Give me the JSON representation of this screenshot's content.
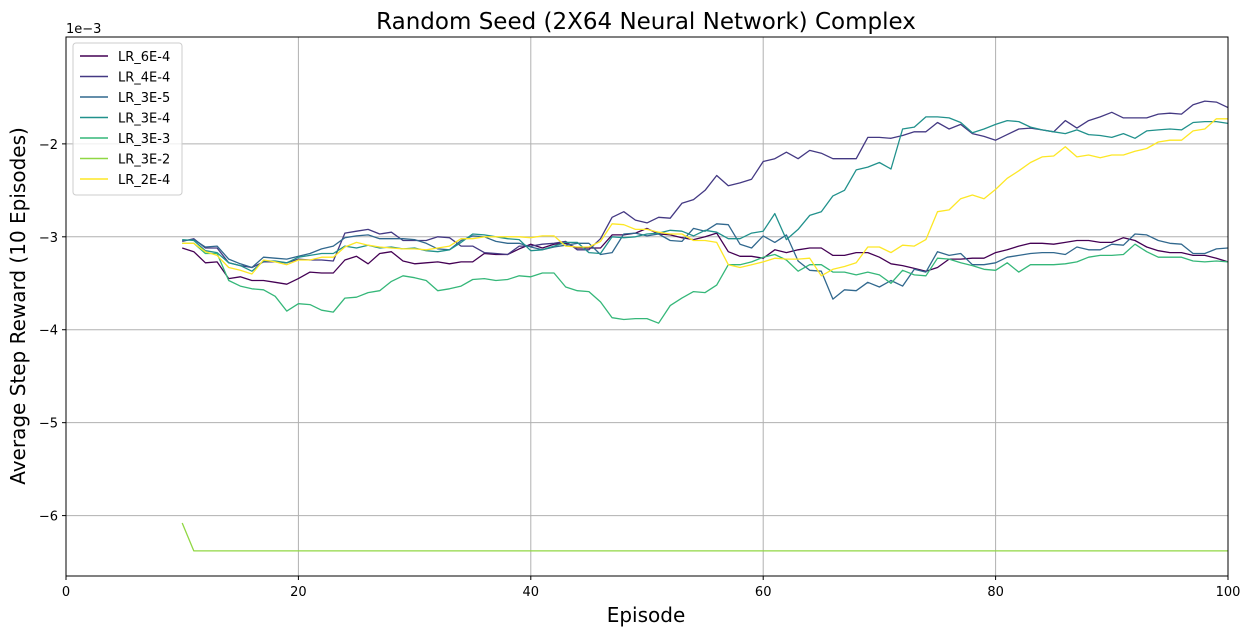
{
  "chart_data": {
    "type": "line",
    "title": "Random Seed (2X64 Neural Network) Complex",
    "xlabel": "Episode",
    "ylabel": "Average Step Reward (10 Episodes)",
    "y_offset_label": "1e−3",
    "xlim": [
      0,
      100
    ],
    "ylim": [
      -6.65,
      -0.85
    ],
    "x_ticks": [
      0,
      20,
      40,
      60,
      80,
      100
    ],
    "y_ticks": [
      -2,
      -3,
      -4,
      -5,
      -6
    ],
    "y_tick_labels": [
      "−2",
      "−3",
      "−4",
      "−5",
      "−6"
    ],
    "grid": true,
    "legend_position": "top-left",
    "series": [
      {
        "name": "LR_6E-4",
        "color": "#440154",
        "x_start": 10,
        "values": [
          -3.12,
          -3.16,
          -3.28,
          -3.27,
          -3.45,
          -3.43,
          -3.47,
          -3.47,
          -3.49,
          -3.51,
          -3.45,
          -3.38,
          -3.39,
          -3.39,
          -3.25,
          -3.21,
          -3.29,
          -3.18,
          -3.16,
          -3.26,
          -3.29,
          -3.28,
          -3.27,
          -3.29,
          -3.27,
          -3.27,
          -3.18,
          -3.19,
          -3.19,
          -3.13,
          -3.08,
          -3.12,
          -3.08,
          -3.07,
          -3.12,
          -3.12,
          -3.12,
          -2.98,
          -2.98,
          -2.96,
          -2.91,
          -2.97,
          -2.98,
          -3.01,
          -3.03,
          -3.0,
          -2.96,
          -3.16,
          -3.21,
          -3.21,
          -3.23,
          -3.14,
          -3.17,
          -3.14,
          -3.12,
          -3.12,
          -3.2,
          -3.2,
          -3.17,
          -3.17,
          -3.22,
          -3.29,
          -3.31,
          -3.34,
          -3.37,
          -3.33,
          -3.24,
          -3.24,
          -3.23,
          -3.23,
          -3.17,
          -3.14,
          -3.1,
          -3.07,
          -3.07,
          -3.08,
          -3.06,
          -3.04,
          -3.04,
          -3.06,
          -3.06,
          -3.01,
          -3.04,
          -3.11,
          -3.15,
          -3.17,
          -3.17,
          -3.2,
          -3.2,
          -3.23,
          -3.27
        ]
      },
      {
        "name": "LR_4E-4",
        "color": "#443983",
        "x_start": 10,
        "values": [
          -3.05,
          -3.02,
          -3.12,
          -3.12,
          -3.28,
          -3.31,
          -3.33,
          -3.27,
          -3.27,
          -3.28,
          -3.24,
          -3.25,
          -3.25,
          -3.26,
          -2.96,
          -2.94,
          -2.92,
          -2.97,
          -2.95,
          -3.04,
          -3.04,
          -3.04,
          -3.0,
          -3.01,
          -3.1,
          -3.1,
          -3.17,
          -3.18,
          -3.19,
          -3.1,
          -3.1,
          -3.08,
          -3.07,
          -3.05,
          -3.14,
          -3.14,
          -3.02,
          -2.79,
          -2.73,
          -2.82,
          -2.85,
          -2.79,
          -2.8,
          -2.64,
          -2.6,
          -2.5,
          -2.34,
          -2.45,
          -2.42,
          -2.38,
          -2.19,
          -2.16,
          -2.09,
          -2.16,
          -2.07,
          -2.1,
          -2.16,
          -2.16,
          -2.16,
          -1.93,
          -1.93,
          -1.94,
          -1.91,
          -1.87,
          -1.87,
          -1.77,
          -1.84,
          -1.79,
          -1.89,
          -1.92,
          -1.96,
          -1.9,
          -1.84,
          -1.83,
          -1.85,
          -1.87,
          -1.75,
          -1.83,
          -1.75,
          -1.71,
          -1.66,
          -1.72,
          -1.72,
          -1.72,
          -1.68,
          -1.67,
          -1.68,
          -1.58,
          -1.54,
          -1.55,
          -1.61
        ]
      },
      {
        "name": "LR_3E-5",
        "color": "#31688e",
        "x_start": 10,
        "values": [
          -3.04,
          -3.03,
          -3.11,
          -3.1,
          -3.24,
          -3.29,
          -3.33,
          -3.22,
          -3.23,
          -3.24,
          -3.21,
          -3.18,
          -3.13,
          -3.1,
          -3.01,
          -2.99,
          -2.98,
          -3.02,
          -3.02,
          -3.02,
          -3.03,
          -3.07,
          -3.13,
          -3.14,
          -3.04,
          -2.99,
          -3.0,
          -3.05,
          -3.07,
          -3.07,
          -3.11,
          -3.14,
          -3.11,
          -3.09,
          -3.07,
          -3.07,
          -3.19,
          -3.17,
          -2.97,
          -2.96,
          -2.99,
          -2.97,
          -3.04,
          -3.05,
          -2.91,
          -2.94,
          -2.86,
          -2.87,
          -3.08,
          -3.12,
          -2.99,
          -3.06,
          -2.98,
          -3.26,
          -3.36,
          -3.37,
          -3.67,
          -3.57,
          -3.58,
          -3.49,
          -3.54,
          -3.47,
          -3.53,
          -3.35,
          -3.38,
          -3.16,
          -3.2,
          -3.18,
          -3.3,
          -3.3,
          -3.28,
          -3.22,
          -3.2,
          -3.18,
          -3.17,
          -3.17,
          -3.19,
          -3.11,
          -3.14,
          -3.14,
          -3.08,
          -3.09,
          -2.97,
          -2.98,
          -3.04,
          -3.07,
          -3.08,
          -3.18,
          -3.18,
          -3.13,
          -3.12
        ]
      },
      {
        "name": "LR_3E-4",
        "color": "#21918c",
        "x_start": 10,
        "values": [
          -3.03,
          -3.04,
          -3.15,
          -3.17,
          -3.28,
          -3.31,
          -3.37,
          -3.26,
          -3.26,
          -3.28,
          -3.22,
          -3.2,
          -3.18,
          -3.18,
          -3.1,
          -3.12,
          -3.09,
          -3.12,
          -3.11,
          -3.13,
          -3.12,
          -3.15,
          -3.16,
          -3.14,
          -3.06,
          -2.97,
          -2.98,
          -3.0,
          -3.02,
          -3.03,
          -3.15,
          -3.14,
          -3.1,
          -3.06,
          -3.06,
          -3.17,
          -3.18,
          -3.0,
          -3.01,
          -3.0,
          -2.97,
          -2.96,
          -2.93,
          -2.94,
          -2.99,
          -2.93,
          -2.95,
          -3.02,
          -3.02,
          -2.96,
          -2.94,
          -2.75,
          -3.03,
          -2.92,
          -2.77,
          -2.73,
          -2.56,
          -2.5,
          -2.28,
          -2.25,
          -2.2,
          -2.27,
          -1.84,
          -1.82,
          -1.71,
          -1.71,
          -1.72,
          -1.77,
          -1.88,
          -1.84,
          -1.79,
          -1.75,
          -1.76,
          -1.82,
          -1.85,
          -1.87,
          -1.89,
          -1.85,
          -1.9,
          -1.91,
          -1.93,
          -1.89,
          -1.94,
          -1.86,
          -1.85,
          -1.84,
          -1.85,
          -1.77,
          -1.76,
          -1.76,
          -1.78
        ]
      },
      {
        "name": "LR_3E-3",
        "color": "#35b779",
        "x_start": 10,
        "values": [
          -3.07,
          -3.07,
          -3.18,
          -3.18,
          -3.47,
          -3.53,
          -3.56,
          -3.57,
          -3.64,
          -3.8,
          -3.72,
          -3.73,
          -3.79,
          -3.81,
          -3.66,
          -3.65,
          -3.6,
          -3.58,
          -3.48,
          -3.42,
          -3.44,
          -3.47,
          -3.58,
          -3.56,
          -3.53,
          -3.46,
          -3.45,
          -3.47,
          -3.46,
          -3.42,
          -3.43,
          -3.39,
          -3.39,
          -3.54,
          -3.58,
          -3.59,
          -3.7,
          -3.87,
          -3.89,
          -3.88,
          -3.88,
          -3.93,
          -3.74,
          -3.66,
          -3.59,
          -3.6,
          -3.52,
          -3.3,
          -3.3,
          -3.27,
          -3.22,
          -3.19,
          -3.25,
          -3.37,
          -3.3,
          -3.3,
          -3.38,
          -3.38,
          -3.41,
          -3.38,
          -3.41,
          -3.5,
          -3.36,
          -3.41,
          -3.42,
          -3.23,
          -3.24,
          -3.28,
          -3.31,
          -3.35,
          -3.36,
          -3.28,
          -3.38,
          -3.3,
          -3.3,
          -3.3,
          -3.29,
          -3.27,
          -3.22,
          -3.2,
          -3.2,
          -3.19,
          -3.08,
          -3.16,
          -3.22,
          -3.22,
          -3.22,
          -3.26,
          -3.27,
          -3.26,
          -3.27
        ]
      },
      {
        "name": "LR_3E-2",
        "color": "#90d743",
        "x_start": 10,
        "values": [
          -6.08,
          -6.38,
          -6.38,
          -6.38,
          -6.38,
          -6.38,
          -6.38,
          -6.38,
          -6.38,
          -6.38,
          -6.38,
          -6.38,
          -6.38,
          -6.38,
          -6.38,
          -6.38,
          -6.38,
          -6.38,
          -6.38,
          -6.38,
          -6.38,
          -6.38,
          -6.38,
          -6.38,
          -6.38,
          -6.38,
          -6.38,
          -6.38,
          -6.38,
          -6.38,
          -6.38,
          -6.38,
          -6.38,
          -6.38,
          -6.38,
          -6.38,
          -6.38,
          -6.38,
          -6.38,
          -6.38,
          -6.38,
          -6.38,
          -6.38,
          -6.38,
          -6.38,
          -6.38,
          -6.38,
          -6.38,
          -6.38,
          -6.38,
          -6.38,
          -6.38,
          -6.38,
          -6.38,
          -6.38,
          -6.38,
          -6.38,
          -6.38,
          -6.38,
          -6.38,
          -6.38,
          -6.38,
          -6.38,
          -6.38,
          -6.38,
          -6.38,
          -6.38,
          -6.38,
          -6.38,
          -6.38,
          -6.38,
          -6.38,
          -6.38,
          -6.38,
          -6.38,
          -6.38,
          -6.38,
          -6.38,
          -6.38,
          -6.38,
          -6.38,
          -6.38,
          -6.38,
          -6.38,
          -6.38,
          -6.38,
          -6.38,
          -6.38,
          -6.38,
          -6.38,
          -6.38
        ]
      },
      {
        "name": "LR_2E-4",
        "color": "#fde725",
        "x_start": 10,
        "values": [
          -3.07,
          -3.07,
          -3.16,
          -3.2,
          -3.33,
          -3.36,
          -3.4,
          -3.25,
          -3.27,
          -3.3,
          -3.25,
          -3.25,
          -3.22,
          -3.22,
          -3.11,
          -3.06,
          -3.09,
          -3.11,
          -3.12,
          -3.13,
          -3.13,
          -3.14,
          -3.12,
          -3.1,
          -3.02,
          -3.02,
          -3.0,
          -3.0,
          -3.0,
          -3.0,
          -3.01,
          -2.99,
          -2.99,
          -3.1,
          -3.11,
          -3.11,
          -3.05,
          -2.86,
          -2.87,
          -2.92,
          -2.92,
          -2.95,
          -2.97,
          -2.97,
          -3.04,
          -3.04,
          -3.06,
          -3.3,
          -3.33,
          -3.3,
          -3.27,
          -3.23,
          -3.24,
          -3.24,
          -3.23,
          -3.42,
          -3.35,
          -3.32,
          -3.28,
          -3.11,
          -3.11,
          -3.17,
          -3.09,
          -3.1,
          -3.03,
          -2.73,
          -2.71,
          -2.59,
          -2.55,
          -2.59,
          -2.49,
          -2.37,
          -2.29,
          -2.2,
          -2.14,
          -2.13,
          -2.03,
          -2.14,
          -2.12,
          -2.15,
          -2.12,
          -2.12,
          -2.08,
          -2.05,
          -1.98,
          -1.96,
          -1.96,
          -1.86,
          -1.84,
          -1.73,
          -1.73
        ]
      }
    ]
  }
}
